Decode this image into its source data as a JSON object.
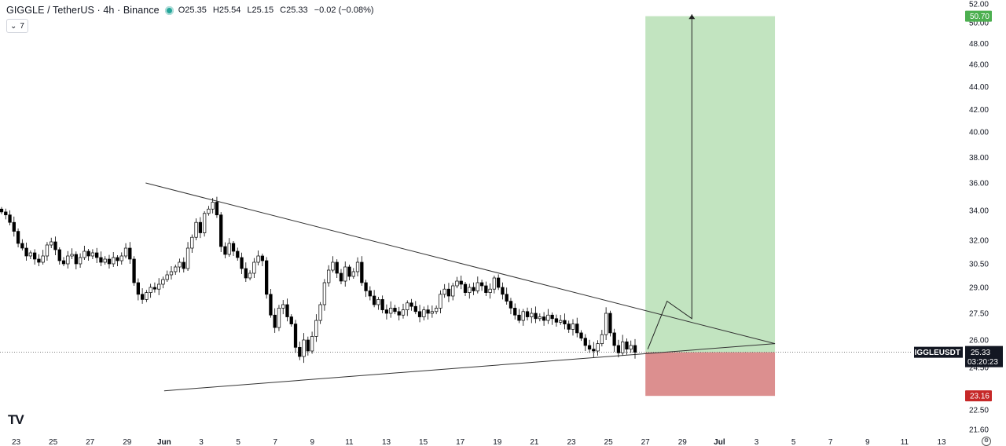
{
  "header": {
    "title": "GIGGLE / TetherUS · 4h · Binance",
    "open": "O25.35",
    "high": "H25.54",
    "low": "L25.15",
    "close": "C25.33",
    "change": "−0.02 (−0.08%)",
    "indicator_count": "7"
  },
  "logo_text": "TV",
  "price_axis": {
    "symbol_label": "GIGGLEUSDT",
    "last_price": "25.33",
    "countdown": "03:20:23",
    "target_price": "50.70",
    "stop_price": "23.16",
    "target_color": "#4caf50",
    "stop_color": "#c62828"
  },
  "chart_data": {
    "type": "candlestick",
    "symbol": "GIGGLE / TetherUS",
    "interval": "4h",
    "exchange": "Binance",
    "y_ticks": [
      "52.00",
      "50.00",
      "48.00",
      "46.00",
      "44.00",
      "42.00",
      "40.00",
      "38.00",
      "36.00",
      "34.00",
      "32.00",
      "30.50",
      "29.00",
      "27.50",
      "26.00",
      "24.50",
      "22.50",
      "21.60"
    ],
    "x_ticks": [
      "23",
      "25",
      "27",
      "29",
      "Jun",
      "3",
      "5",
      "7",
      "9",
      "11",
      "13",
      "15",
      "17",
      "19",
      "21",
      "23",
      "25",
      "27",
      "29",
      "Jul",
      "3",
      "5",
      "7",
      "9",
      "11",
      "13"
    ],
    "last_price": 25.33,
    "trendlines": {
      "upper": {
        "from_date": "May 30",
        "from_price": 36.0,
        "to_date": "Jul 3",
        "to_price": 25.8
      },
      "lower": {
        "from_date": "May 31",
        "from_price": 23.4,
        "to_date": "Jul 3",
        "to_price": 25.8
      }
    },
    "position": {
      "entry": 25.33,
      "target": 50.7,
      "stop": 23.16,
      "start_date": "Jun 26",
      "end_date": "Jul 3"
    },
    "projection_path": [
      {
        "date": "Jun 26",
        "price": 25.5
      },
      {
        "date": "Jun 27",
        "price": 28.2
      },
      {
        "date": "Jun 28",
        "price": 27.2
      },
      {
        "date": "Jun 28",
        "price": 50.9
      }
    ],
    "candles_close": [
      33.9,
      33.7,
      33.2,
      32.6,
      31.8,
      31.5,
      31.0,
      31.2,
      30.8,
      30.6,
      31.0,
      31.7,
      31.9,
      31.4,
      30.7,
      30.5,
      31.0,
      31.1,
      30.5,
      30.9,
      31.3,
      31.0,
      31.2,
      30.9,
      30.6,
      30.8,
      30.5,
      30.9,
      30.7,
      31.0,
      31.5,
      30.8,
      29.3,
      28.6,
      28.3,
      28.7,
      29.0,
      28.9,
      29.2,
      29.5,
      29.8,
      30.0,
      30.3,
      30.6,
      30.2,
      31.5,
      32.2,
      33.2,
      32.5,
      33.8,
      34.1,
      34.6,
      33.7,
      31.6,
      31.1,
      31.8,
      31.3,
      30.9,
      30.2,
      29.6,
      29.9,
      30.6,
      31.0,
      30.7,
      28.6,
      27.4,
      26.7,
      27.8,
      28.0,
      27.3,
      26.9,
      25.6,
      25.1,
      26.0,
      25.4,
      26.2,
      27.1,
      28.0,
      29.3,
      30.1,
      30.6,
      29.9,
      29.4,
      30.3,
      29.7,
      30.0,
      30.6,
      29.3,
      28.8,
      28.5,
      28.0,
      28.3,
      27.7,
      27.5,
      27.8,
      27.6,
      27.4,
      27.7,
      28.1,
      27.9,
      27.6,
      27.3,
      27.7,
      27.5,
      27.6,
      27.8,
      28.6,
      28.9,
      28.5,
      29.1,
      29.4,
      29.2,
      28.7,
      29.0,
      28.8,
      29.3,
      29.1,
      28.7,
      28.9,
      29.6,
      29.0,
      28.6,
      28.2,
      27.8,
      27.4,
      27.1,
      27.6,
      27.3,
      27.5,
      27.2,
      27.3,
      27.1,
      27.4,
      27.2,
      27.0,
      27.1,
      26.9,
      26.6,
      26.9,
      26.4,
      26.1,
      25.7,
      25.5,
      25.4,
      25.8,
      26.3,
      27.5,
      26.4,
      25.7,
      25.3,
      25.9,
      25.5,
      25.7,
      25.33
    ]
  }
}
